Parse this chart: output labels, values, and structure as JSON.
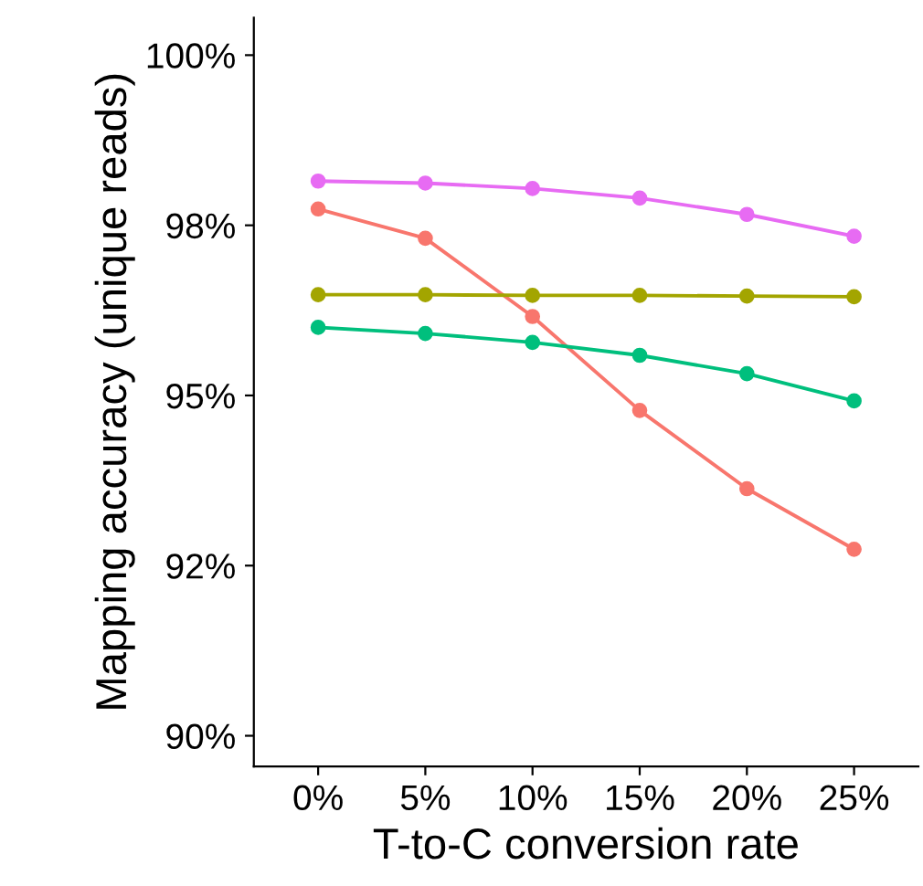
{
  "chart_data": {
    "type": "line",
    "xlabel": "T-to-C conversion rate",
    "ylabel": "Mapping accuracy (unique reads)",
    "categories": [
      "0%",
      "5%",
      "10%",
      "15%",
      "20%",
      "25%"
    ],
    "series": [
      {
        "color": "#f8766d",
        "values": [
          97.74,
          97.31,
          96.16,
          94.78,
          93.63,
          92.74
        ]
      },
      {
        "color": "#a3a500",
        "values": [
          96.48,
          96.48,
          96.47,
          96.47,
          96.46,
          96.45
        ]
      },
      {
        "color": "#00bf7d",
        "values": [
          96.0,
          95.91,
          95.78,
          95.59,
          95.32,
          94.92
        ]
      },
      {
        "color": "#e76bf3",
        "values": [
          98.15,
          98.12,
          98.04,
          97.9,
          97.66,
          97.34
        ]
      }
    ],
    "ylim": [
      89.55,
      100.55
    ],
    "yticks": [
      {
        "value": 90,
        "label": "90%"
      },
      {
        "value": 92.5,
        "label": "92%"
      },
      {
        "value": 95,
        "label": "95%"
      },
      {
        "value": 97.5,
        "label": "98%"
      },
      {
        "value": 100,
        "label": "100%"
      }
    ],
    "marker": "circle",
    "line_style": "solid",
    "grid": false,
    "legend": false
  }
}
